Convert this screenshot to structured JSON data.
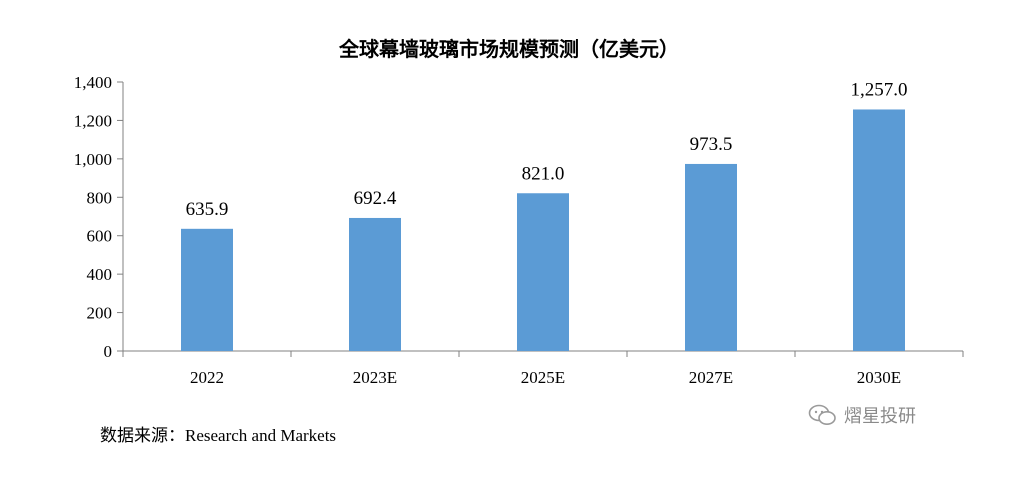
{
  "chart_data": {
    "type": "bar",
    "title": "全球幕墙玻璃市场规模预测（亿美元）",
    "categories": [
      "2022",
      "2023E",
      "2025E",
      "2027E",
      "2030E"
    ],
    "values": [
      635.9,
      692.4,
      821.0,
      973.5,
      1257.0
    ],
    "value_labels": [
      "635.9",
      "692.4",
      "821.0",
      "973.5",
      "1,257.0"
    ],
    "yticks": [
      "0",
      "200",
      "400",
      "600",
      "800",
      "1,000",
      "1,200",
      "1,400"
    ],
    "ytick_values": [
      0,
      200,
      400,
      600,
      800,
      1000,
      1200,
      1400
    ],
    "ylim": [
      0,
      1400
    ],
    "xlabel": "",
    "ylabel": "",
    "grid": false,
    "bar_color": "#5b9bd5"
  },
  "source": {
    "prefix": "数据来源：",
    "name": "Research and Markets"
  },
  "watermark": {
    "text": "熠星投研",
    "icon": "wechat-icon"
  }
}
